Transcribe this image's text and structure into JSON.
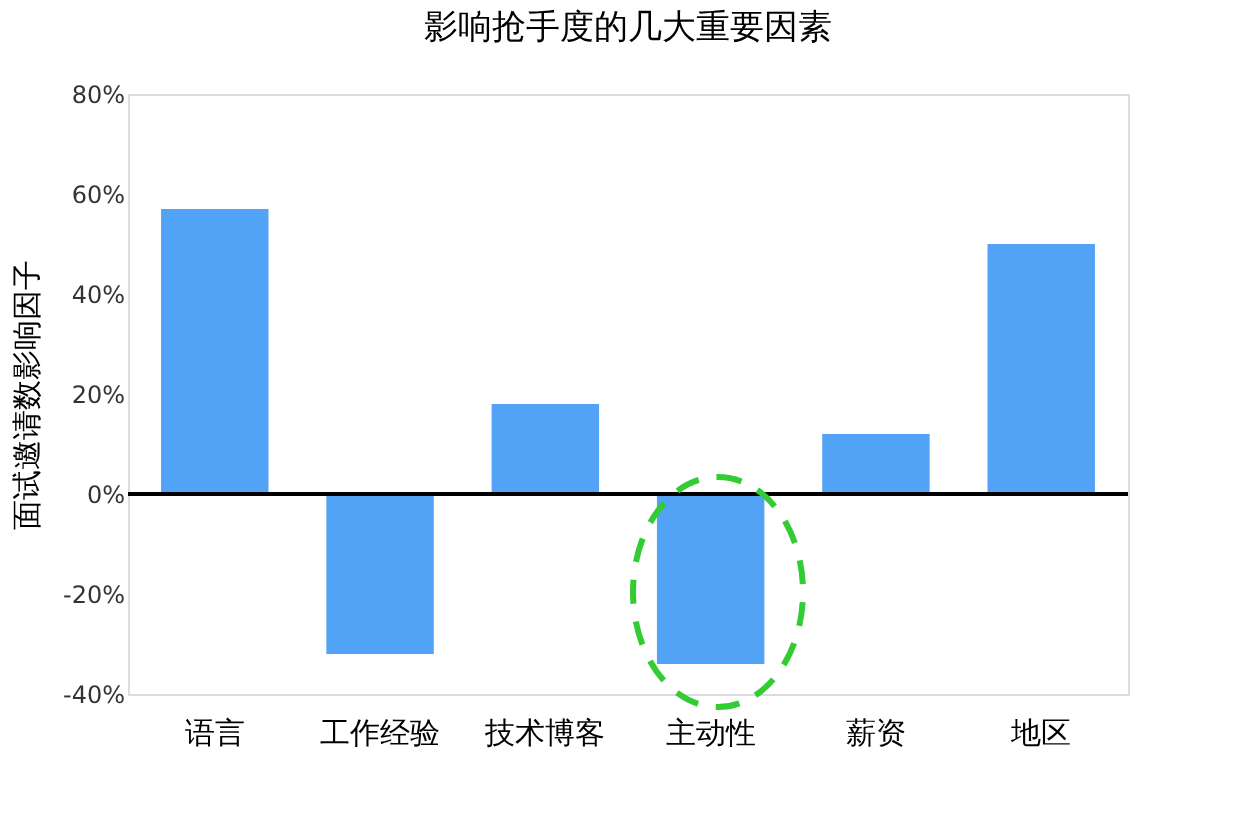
{
  "chart_data": {
    "type": "bar",
    "title": "影响抢手度的几大重要因素",
    "ylabel": "面试邀请数影响因子",
    "categories": [
      "语言",
      "工作经验",
      "技术博客",
      "主动性",
      "薪资",
      "地区"
    ],
    "values": [
      57,
      -32,
      18,
      -34,
      12,
      50
    ],
    "color": "#52a3f5",
    "ylim": [
      -40,
      80
    ],
    "yticks": [
      {
        "value": -40,
        "label": "-40%"
      },
      {
        "value": -20,
        "label": "-20%"
      },
      {
        "value": 0,
        "label": "0%"
      },
      {
        "value": 20,
        "label": "20%"
      },
      {
        "value": 40,
        "label": "40%"
      },
      {
        "value": 60,
        "label": "60%"
      },
      {
        "value": 80,
        "label": "80%"
      }
    ],
    "ref_lines": [
      {
        "axis": "y",
        "value": 0,
        "color": "#000000"
      }
    ],
    "grid": false
  }
}
